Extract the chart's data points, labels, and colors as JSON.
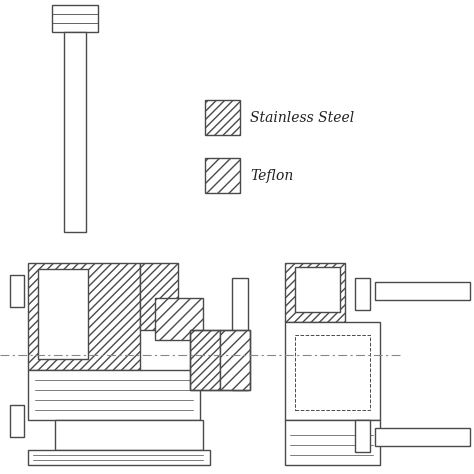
{
  "bg_color": "#ffffff",
  "line_color": "#4a4a4a",
  "centerline_color": "#666666",
  "legend_ss_label": "Stainless Steel",
  "legend_tf_label": "Teflon"
}
